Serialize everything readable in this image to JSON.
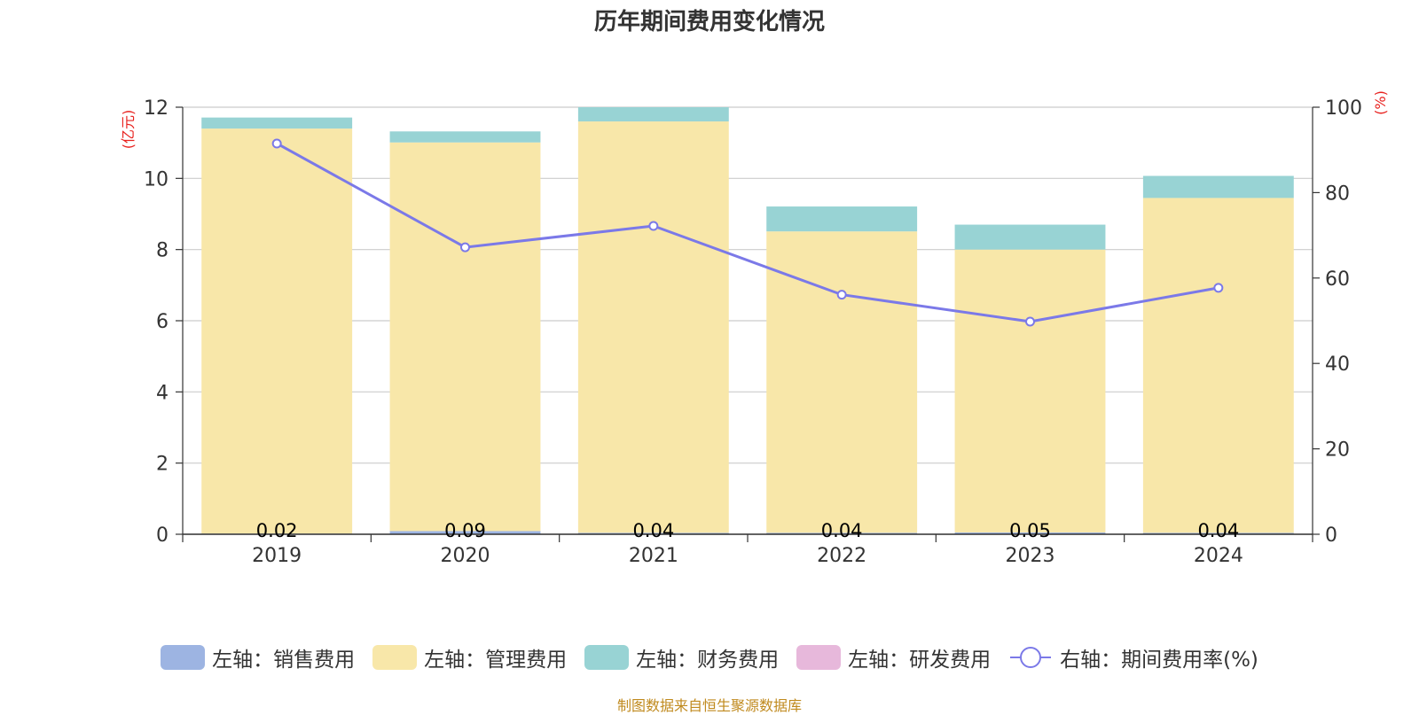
{
  "chart_data": {
    "type": "bar",
    "title": "历年期间费用变化情况",
    "categories": [
      "2019",
      "2020",
      "2021",
      "2022",
      "2023",
      "2024"
    ],
    "stacked": true,
    "left_axis": {
      "unit_label": "(亿元)",
      "ylim": [
        0,
        12
      ],
      "ticks": [
        0,
        2,
        4,
        6,
        8,
        10,
        12
      ]
    },
    "right_axis": {
      "unit_label": "(%)",
      "ylim": [
        0,
        100
      ],
      "ticks": [
        0,
        20,
        40,
        60,
        80,
        100
      ]
    },
    "series": [
      {
        "name": "左轴：销售费用",
        "type": "bar",
        "axis": "left",
        "color": "#9db4e2",
        "values": [
          0.02,
          0.09,
          0.04,
          0.04,
          0.05,
          0.04
        ],
        "data_labels": [
          "0.02",
          "0.09",
          "0.04",
          "0.04",
          "0.05",
          "0.04"
        ]
      },
      {
        "name": "左轴：管理费用",
        "type": "bar",
        "axis": "left",
        "color": "#f8e7a9",
        "values": [
          11.38,
          10.92,
          11.56,
          8.47,
          7.95,
          9.41
        ]
      },
      {
        "name": "左轴：财务费用",
        "type": "bar",
        "axis": "left",
        "color": "#98d3d4",
        "values": [
          0.31,
          0.31,
          0.4,
          0.7,
          0.7,
          0.62
        ]
      },
      {
        "name": "左轴：研发费用",
        "type": "bar",
        "axis": "left",
        "color": "#e7b8db",
        "values": [
          0,
          0,
          0,
          0,
          0,
          0
        ]
      },
      {
        "name": "右轴：期间费用率(%)",
        "type": "line",
        "axis": "right",
        "color": "#7b79e8",
        "values": [
          91.5,
          67.2,
          72.2,
          56.1,
          49.8,
          57.7
        ]
      }
    ],
    "legend_position": "bottom",
    "grid": true
  },
  "source_text": "制图数据来自恒生聚源数据库"
}
